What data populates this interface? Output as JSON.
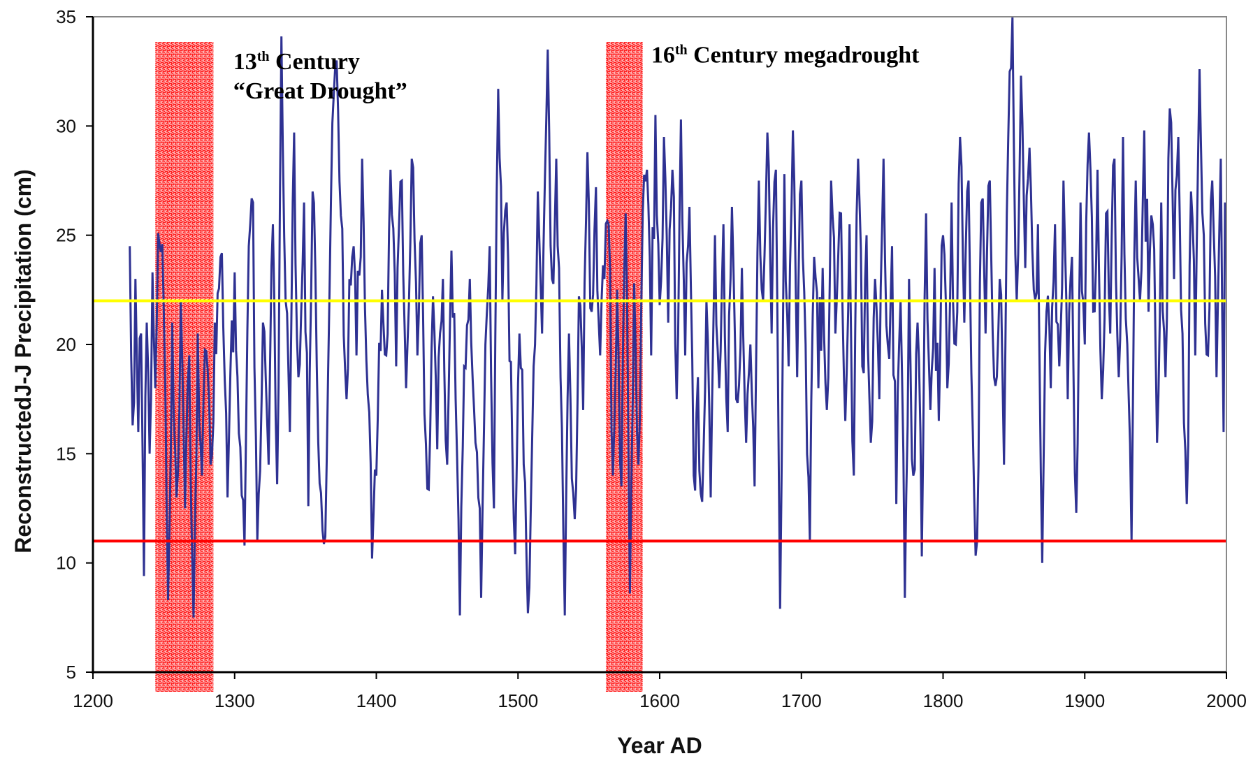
{
  "chart_data": {
    "type": "line",
    "title": "",
    "xlabel": "Year AD",
    "ylabel": "ReconstructedJ-J Precipitation (cm)",
    "xlim": [
      1200,
      2000
    ],
    "ylim": [
      5,
      35
    ],
    "x_ticks": [
      "1200",
      "1300",
      "1400",
      "1500",
      "1600",
      "1700",
      "1800",
      "1900",
      "2000"
    ],
    "y_ticks": [
      "5",
      "10",
      "15",
      "20",
      "25",
      "30",
      "35"
    ],
    "grid": false,
    "legend": "none",
    "colors": {
      "series": "#2e3192",
      "mean_line": "#ffff00",
      "threshold_line": "#ff0000",
      "drought_band": "#ff2020"
    },
    "reference_lines": [
      {
        "y": 22,
        "color": "#ffff00"
      },
      {
        "y": 11,
        "color": "#ff0000"
      }
    ],
    "highlight_bands": [
      {
        "x_start": 1244,
        "x_end": 1285
      },
      {
        "x_start": 1562,
        "x_end": 1588
      }
    ],
    "annotations": [
      {
        "lines": [
          {
            "main": "13",
            "sup": "th",
            "rest": " Century"
          },
          {
            "main": "“Great Drought”",
            "sup": "",
            "rest": ""
          }
        ],
        "x": 1299,
        "y": 32.6
      },
      {
        "lines": [
          {
            "main": "16",
            "sup": "th",
            "rest": " Century megadrought"
          }
        ],
        "x": 1594,
        "y": 32.9
      }
    ],
    "series_anchors": [
      [
        1226,
        24.5
      ],
      [
        1228,
        16.3
      ],
      [
        1230,
        23.0
      ],
      [
        1232,
        16.0
      ],
      [
        1234,
        20.5
      ],
      [
        1236,
        9.4
      ],
      [
        1238,
        21.0
      ],
      [
        1240,
        15.0
      ],
      [
        1242,
        23.3
      ],
      [
        1244,
        18.0
      ],
      [
        1246,
        25.1
      ],
      [
        1250,
        21.5
      ],
      [
        1253,
        8.3
      ],
      [
        1256,
        21.0
      ],
      [
        1259,
        13.0
      ],
      [
        1262,
        22.0
      ],
      [
        1265,
        12.5
      ],
      [
        1268,
        19.5
      ],
      [
        1271,
        7.5
      ],
      [
        1274,
        20.5
      ],
      [
        1277,
        14.0
      ],
      [
        1280,
        19.7
      ],
      [
        1283,
        14.5
      ],
      [
        1286,
        21.0
      ],
      [
        1290,
        24.0
      ],
      [
        1295,
        13.0
      ],
      [
        1300,
        23.3
      ],
      [
        1304,
        15.3
      ],
      [
        1307,
        10.8
      ],
      [
        1310,
        24.5
      ],
      [
        1313,
        26.5
      ],
      [
        1316,
        11.0
      ],
      [
        1320,
        21.0
      ],
      [
        1324,
        14.5
      ],
      [
        1327,
        25.5
      ],
      [
        1330,
        13.6
      ],
      [
        1333,
        34.1
      ],
      [
        1336,
        22.0
      ],
      [
        1339,
        16.0
      ],
      [
        1342,
        29.7
      ],
      [
        1345,
        18.5
      ],
      [
        1349,
        26.5
      ],
      [
        1352,
        12.6
      ],
      [
        1355,
        27.0
      ],
      [
        1358,
        19.0
      ],
      [
        1361,
        13.2
      ],
      [
        1364,
        11.2
      ],
      [
        1367,
        22.5
      ],
      [
        1370,
        31.5
      ],
      [
        1373,
        30.7
      ],
      [
        1376,
        25.3
      ],
      [
        1379,
        17.5
      ],
      [
        1383,
        24.0
      ],
      [
        1386,
        19.5
      ],
      [
        1390,
        28.5
      ],
      [
        1394,
        17.7
      ],
      [
        1397,
        10.2
      ],
      [
        1400,
        14.0
      ],
      [
        1404,
        22.5
      ],
      [
        1407,
        19.5
      ],
      [
        1410,
        28.0
      ],
      [
        1414,
        19.0
      ],
      [
        1418,
        27.5
      ],
      [
        1421,
        18.0
      ],
      [
        1425,
        28.5
      ],
      [
        1429,
        19.5
      ],
      [
        1432,
        25.0
      ],
      [
        1436,
        13.4
      ],
      [
        1440,
        22.2
      ],
      [
        1443,
        15.2
      ],
      [
        1447,
        23.0
      ],
      [
        1450,
        14.5
      ],
      [
        1453,
        24.3
      ],
      [
        1456,
        17.5
      ],
      [
        1459,
        7.6
      ],
      [
        1462,
        19.0
      ],
      [
        1466,
        23.0
      ],
      [
        1470,
        15.5
      ],
      [
        1474,
        8.4
      ],
      [
        1477,
        20.0
      ],
      [
        1480,
        24.5
      ],
      [
        1483,
        12.5
      ],
      [
        1486,
        31.7
      ],
      [
        1489,
        22.0
      ],
      [
        1492,
        26.5
      ],
      [
        1495,
        19.2
      ],
      [
        1498,
        10.4
      ],
      [
        1501,
        20.5
      ],
      [
        1504,
        14.5
      ],
      [
        1507,
        7.7
      ],
      [
        1511,
        19.0
      ],
      [
        1514,
        27.0
      ],
      [
        1517,
        20.5
      ],
      [
        1521,
        33.5
      ],
      [
        1524,
        23.0
      ],
      [
        1527,
        28.5
      ],
      [
        1530,
        18.5
      ],
      [
        1533,
        7.6
      ],
      [
        1536,
        20.5
      ],
      [
        1540,
        12.0
      ],
      [
        1543,
        22.2
      ],
      [
        1546,
        17.0
      ],
      [
        1549,
        28.8
      ],
      [
        1552,
        21.5
      ],
      [
        1555,
        27.2
      ],
      [
        1558,
        19.5
      ],
      [
        1561,
        23.0
      ],
      [
        1564,
        25.5
      ],
      [
        1567,
        14.0
      ],
      [
        1570,
        22.5
      ],
      [
        1573,
        13.5
      ],
      [
        1576,
        26.0
      ],
      [
        1579,
        8.6
      ],
      [
        1582,
        22.8
      ],
      [
        1585,
        14.5
      ],
      [
        1588,
        26.0
      ],
      [
        1591,
        28.0
      ],
      [
        1594,
        19.5
      ],
      [
        1597,
        30.5
      ],
      [
        1600,
        21.8
      ],
      [
        1603,
        29.5
      ],
      [
        1606,
        21.0
      ],
      [
        1609,
        28.0
      ],
      [
        1612,
        17.5
      ],
      [
        1615,
        30.3
      ],
      [
        1618,
        19.5
      ],
      [
        1621,
        26.3
      ],
      [
        1624,
        14.0
      ],
      [
        1627,
        18.5
      ],
      [
        1630,
        12.8
      ],
      [
        1633,
        22.0
      ],
      [
        1636,
        13.0
      ],
      [
        1639,
        25.0
      ],
      [
        1642,
        18.0
      ],
      [
        1645,
        25.5
      ],
      [
        1648,
        16.0
      ],
      [
        1651,
        26.3
      ],
      [
        1654,
        17.5
      ],
      [
        1658,
        23.5
      ],
      [
        1661,
        15.5
      ],
      [
        1664,
        20.0
      ],
      [
        1667,
        13.5
      ],
      [
        1670,
        27.5
      ],
      [
        1673,
        22.0
      ],
      [
        1676,
        29.7
      ],
      [
        1679,
        20.5
      ],
      [
        1682,
        28.0
      ],
      [
        1685,
        7.9
      ],
      [
        1688,
        27.8
      ],
      [
        1691,
        19.0
      ],
      [
        1694,
        29.8
      ],
      [
        1697,
        18.5
      ],
      [
        1700,
        27.5
      ],
      [
        1703,
        20.0
      ],
      [
        1706,
        11.0
      ],
      [
        1709,
        24.0
      ],
      [
        1712,
        18.0
      ],
      [
        1715,
        23.5
      ],
      [
        1718,
        17.0
      ],
      [
        1721,
        27.5
      ],
      [
        1724,
        20.5
      ],
      [
        1728,
        26.0
      ],
      [
        1731,
        16.5
      ],
      [
        1734,
        25.5
      ],
      [
        1737,
        14.0
      ],
      [
        1740,
        28.5
      ],
      [
        1743,
        19.0
      ],
      [
        1746,
        25.0
      ],
      [
        1749,
        15.5
      ],
      [
        1752,
        23.0
      ],
      [
        1755,
        17.5
      ],
      [
        1758,
        28.5
      ],
      [
        1761,
        20.0
      ],
      [
        1764,
        24.5
      ],
      [
        1767,
        12.7
      ],
      [
        1770,
        22.0
      ],
      [
        1773,
        8.4
      ],
      [
        1776,
        23.0
      ],
      [
        1779,
        14.0
      ],
      [
        1782,
        21.0
      ],
      [
        1785,
        10.3
      ],
      [
        1788,
        26.0
      ],
      [
        1791,
        17.0
      ],
      [
        1794,
        23.5
      ],
      [
        1797,
        16.5
      ],
      [
        1800,
        25.0
      ],
      [
        1803,
        18.0
      ],
      [
        1806,
        26.5
      ],
      [
        1809,
        20.0
      ],
      [
        1812,
        29.5
      ],
      [
        1815,
        21.0
      ],
      [
        1818,
        27.5
      ],
      [
        1821,
        16.0
      ],
      [
        1824,
        11.0
      ],
      [
        1827,
        26.5
      ],
      [
        1830,
        20.5
      ],
      [
        1833,
        27.5
      ],
      [
        1836,
        18.5
      ],
      [
        1840,
        23.0
      ],
      [
        1843,
        14.5
      ],
      [
        1846,
        29.5
      ],
      [
        1849,
        35.0
      ],
      [
        1852,
        22.0
      ],
      [
        1855,
        32.3
      ],
      [
        1858,
        23.5
      ],
      [
        1861,
        29.0
      ],
      [
        1864,
        22.5
      ],
      [
        1867,
        25.5
      ],
      [
        1870,
        10.0
      ],
      [
        1873,
        21.5
      ],
      [
        1876,
        18.0
      ],
      [
        1879,
        25.5
      ],
      [
        1882,
        19.0
      ],
      [
        1885,
        27.5
      ],
      [
        1888,
        17.5
      ],
      [
        1891,
        24.0
      ],
      [
        1894,
        12.3
      ],
      [
        1897,
        26.5
      ],
      [
        1900,
        20.0
      ],
      [
        1903,
        29.7
      ],
      [
        1906,
        21.5
      ],
      [
        1909,
        28.0
      ],
      [
        1912,
        17.5
      ],
      [
        1915,
        26.0
      ],
      [
        1918,
        20.5
      ],
      [
        1921,
        28.5
      ],
      [
        1924,
        18.5
      ],
      [
        1927,
        29.5
      ],
      [
        1930,
        20.0
      ],
      [
        1933,
        11.0
      ],
      [
        1936,
        27.5
      ],
      [
        1939,
        22.0
      ],
      [
        1942,
        29.8
      ],
      [
        1945,
        21.5
      ],
      [
        1948,
        25.5
      ],
      [
        1951,
        15.5
      ],
      [
        1954,
        26.5
      ],
      [
        1957,
        18.5
      ],
      [
        1960,
        30.8
      ],
      [
        1963,
        23.0
      ],
      [
        1966,
        29.5
      ],
      [
        1969,
        20.5
      ],
      [
        1972,
        12.7
      ],
      [
        1975,
        27.0
      ],
      [
        1978,
        19.5
      ],
      [
        1981,
        32.6
      ],
      [
        1984,
        25.0
      ],
      [
        1987,
        19.5
      ],
      [
        1990,
        27.5
      ],
      [
        1993,
        18.5
      ],
      [
        1996,
        28.5
      ],
      [
        1998,
        16.0
      ],
      [
        1999,
        26.5
      ]
    ]
  }
}
